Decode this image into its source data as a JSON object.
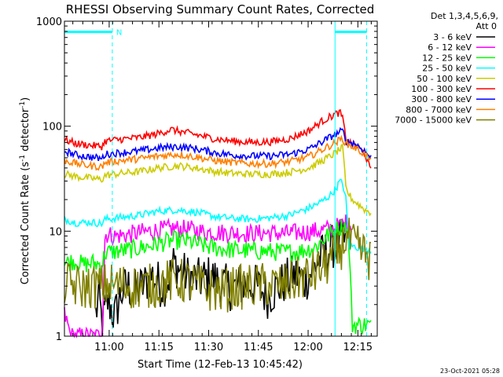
{
  "chart_data": {
    "type": "line",
    "title": "RHESSI Observing Summary Count Rates, Corrected",
    "xlabel": "Start Time (12-Feb-13 10:45:42)",
    "ylabel_main": "Corrected Count Rate (s",
    "ylabel_sup1": "-1",
    "ylabel_mid": " detector",
    "ylabel_sup2": "-1",
    "ylabel_end": ")",
    "yscale": "log",
    "ylim": [
      1,
      1000
    ],
    "xlim": [
      0,
      100
    ],
    "x_tick_labels": [
      {
        "label": "11:00",
        "x": 14.3
      },
      {
        "label": "11:15",
        "x": 30.2
      },
      {
        "label": "11:30",
        "x": 46.1
      },
      {
        "label": "11:45",
        "x": 62.0
      },
      {
        "label": "12:00",
        "x": 77.9
      },
      {
        "label": "12:15",
        "x": 93.8
      }
    ],
    "y_tick_labels": [
      {
        "label": "1",
        "value": 1
      },
      {
        "label": "10",
        "value": 10
      },
      {
        "label": "100",
        "value": 100
      },
      {
        "label": "1000",
        "value": 1000
      }
    ],
    "legend": {
      "header1": "Det 1,3,4,5,6,9,",
      "header2": "Att 0",
      "placement": "right"
    },
    "annotation_flag": "N",
    "attenuator_bands": [
      {
        "start": 0,
        "end": 15.3,
        "level": 790
      },
      {
        "start": 86.5,
        "end": 96.6,
        "level": 790
      }
    ],
    "vertical_markers": [
      {
        "x": 0,
        "style": "solid"
      },
      {
        "x": 15.3,
        "style": "dashed"
      },
      {
        "x": 86.5,
        "style": "solid"
      },
      {
        "x": 96.6,
        "style": "dashed"
      }
    ],
    "series": [
      {
        "name": "3 - 6 keV",
        "color": "#000000",
        "x": [
          10,
          11,
          12,
          14,
          16,
          18,
          20,
          22,
          25,
          28,
          31,
          33,
          35,
          37,
          40,
          43,
          47,
          50,
          54,
          58,
          62,
          65,
          68,
          71,
          74,
          77,
          80,
          82,
          84,
          86,
          88,
          90
        ],
        "y": [
          1.6,
          2.4,
          1.3,
          2.2,
          1.5,
          2.5,
          3.1,
          2.6,
          3.0,
          3.8,
          3.0,
          3.3,
          5.0,
          4.2,
          3.6,
          3.4,
          3.7,
          3.1,
          2.8,
          3.2,
          2.9,
          2.4,
          2.9,
          3.4,
          3.8,
          3.4,
          4.6,
          5.7,
          6.5,
          7.2,
          7.8,
          8.2
        ]
      },
      {
        "name": "6 - 12 keV",
        "color": "#ff00ff",
        "x": [
          0,
          1,
          2,
          3,
          4,
          6,
          9,
          12,
          13,
          16,
          20,
          25,
          30,
          35,
          40,
          45,
          50,
          55,
          60,
          65,
          70,
          75,
          80,
          84,
          88,
          90,
          92
        ],
        "y": [
          1.6,
          1.3,
          1.0,
          1.0,
          1.0,
          1.0,
          1.0,
          1.0,
          9.4,
          9.0,
          9.2,
          9.8,
          10.2,
          10.6,
          10.4,
          9.8,
          9.7,
          9.6,
          9.5,
          9.6,
          9.5,
          9.7,
          10.0,
          10.4,
          11.2,
          12.0,
          11.5
        ]
      },
      {
        "name": "12 - 25 keV",
        "color": "#00ff00",
        "x": [
          0,
          3,
          6,
          9,
          12,
          13,
          16,
          20,
          25,
          30,
          35,
          40,
          45,
          50,
          55,
          60,
          65,
          70,
          75,
          80,
          84,
          86,
          88,
          90,
          91,
          92,
          95,
          98
        ],
        "y": [
          5.0,
          5.2,
          4.8,
          5.0,
          4.8,
          6.2,
          6.4,
          6.6,
          7.0,
          7.6,
          8.2,
          8.0,
          7.2,
          6.8,
          6.6,
          6.5,
          6.4,
          6.3,
          6.4,
          7.0,
          9.0,
          10.0,
          10.8,
          11.5,
          7.0,
          1.28,
          1.28,
          1.28
        ]
      },
      {
        "name": "25 - 50 keV",
        "color": "#00ffff",
        "x": [
          0,
          4,
          8,
          12,
          13,
          18,
          24,
          30,
          36,
          42,
          48,
          54,
          60,
          66,
          72,
          78,
          82,
          85,
          87,
          88,
          89,
          90,
          91,
          92,
          94,
          96,
          98
        ],
        "y": [
          13.0,
          12.0,
          12.2,
          11.8,
          13.0,
          13.5,
          14.2,
          15.5,
          16.0,
          15.2,
          13.8,
          13.2,
          13.0,
          13.4,
          14.2,
          16.5,
          19.0,
          22.0,
          26.0,
          30.0,
          28.0,
          20.0,
          7.0,
          7.2,
          7.0,
          6.8,
          6.5
        ]
      },
      {
        "name": "50 - 100 keV",
        "color": "#cccc00",
        "x": [
          0,
          4,
          8,
          12,
          13,
          18,
          24,
          30,
          36,
          42,
          48,
          54,
          60,
          66,
          72,
          78,
          82,
          86,
          88,
          89,
          90,
          92,
          94,
          96,
          98
        ],
        "y": [
          35.0,
          33.0,
          32.0,
          31.0,
          34.0,
          35.5,
          37.0,
          40.0,
          42.0,
          40.0,
          37.0,
          35.5,
          35.0,
          35.0,
          36.5,
          40.0,
          46.0,
          54.0,
          60.0,
          62.0,
          25.0,
          20.0,
          18.0,
          16.0,
          15.0
        ]
      },
      {
        "name": "100 - 300 keV",
        "color": "#ff0000",
        "x": [
          0,
          4,
          8,
          12,
          13,
          18,
          24,
          30,
          34,
          36,
          42,
          48,
          54,
          60,
          66,
          72,
          78,
          82,
          86,
          88,
          89,
          90,
          93,
          96,
          98
        ],
        "y": [
          74.0,
          68.0,
          66.0,
          64.0,
          72.0,
          75.0,
          78.0,
          85.0,
          93.0,
          90.0,
          83.0,
          76.0,
          72.0,
          70.0,
          71.0,
          76.0,
          90.0,
          110.0,
          128.0,
          135.0,
          120.0,
          72.0,
          66.0,
          55.0,
          37.0
        ]
      },
      {
        "name": "300 - 800 keV",
        "color": "#0000ff",
        "x": [
          0,
          4,
          8,
          12,
          13,
          18,
          24,
          30,
          36,
          42,
          48,
          54,
          60,
          66,
          72,
          78,
          82,
          86,
          88,
          89,
          90,
          93,
          96,
          98
        ],
        "y": [
          58.0,
          53.0,
          51.0,
          49.0,
          54.0,
          56.0,
          58.0,
          62.0,
          64.0,
          61.0,
          56.0,
          53.0,
          52.0,
          52.0,
          54.0,
          60.0,
          70.0,
          82.0,
          88.0,
          90.0,
          72.0,
          68.0,
          58.0,
          50.0
        ]
      },
      {
        "name": "800 - 7000 keV",
        "color": "#ff8000",
        "x": [
          0,
          4,
          8,
          12,
          13,
          18,
          24,
          30,
          36,
          42,
          48,
          54,
          60,
          66,
          72,
          78,
          82,
          86,
          88,
          89,
          90,
          93,
          96,
          98
        ],
        "y": [
          47.0,
          44.0,
          42.0,
          41.0,
          45.0,
          47.0,
          49.0,
          52.0,
          54.0,
          51.0,
          47.0,
          45.0,
          44.0,
          44.0,
          46.0,
          51.0,
          59.0,
          68.0,
          74.0,
          76.0,
          68.0,
          62.0,
          54.0,
          46.0
        ]
      },
      {
        "name": "7000 - 15000 keV",
        "color": "#808000",
        "x": [
          0,
          3,
          6,
          9,
          12,
          15,
          20,
          25,
          30,
          35,
          40,
          45,
          50,
          55,
          60,
          65,
          70,
          75,
          80,
          83,
          86,
          88,
          90,
          92,
          94,
          96,
          98
        ],
        "y": [
          3.2,
          3.0,
          2.9,
          3.0,
          3.0,
          3.1,
          3.0,
          2.9,
          3.1,
          3.4,
          3.3,
          2.8,
          2.7,
          2.9,
          3.0,
          3.1,
          3.0,
          3.5,
          4.0,
          4.6,
          5.5,
          6.5,
          8.8,
          7.5,
          6.8,
          6.0,
          5.3
        ]
      }
    ]
  },
  "footer": {
    "timestamp": "23-Oct-2021 05:28"
  }
}
